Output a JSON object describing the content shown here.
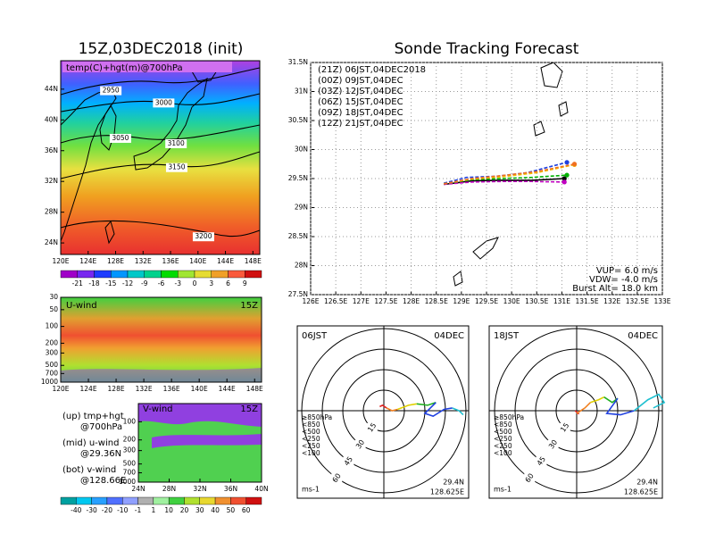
{
  "chart_data": [
    {
      "type": "map",
      "title": "15Z,03DEC2018 (init)",
      "label": "temp(C)+hgt(m)@700hPa",
      "xlim": [
        120,
        149
      ],
      "ylim": [
        22.5,
        47.7
      ],
      "xticks": [
        {
          "value": 120,
          "label": "120E"
        },
        {
          "value": 124,
          "label": "124E"
        },
        {
          "value": 128,
          "label": "128E"
        },
        {
          "value": 132,
          "label": "132E"
        },
        {
          "value": 136,
          "label": "136E"
        },
        {
          "value": 140,
          "label": "140E"
        },
        {
          "value": 144,
          "label": "144E"
        },
        {
          "value": 148,
          "label": "148E"
        }
      ],
      "yticks": [
        {
          "value": 24,
          "label": "24N"
        },
        {
          "value": 28,
          "label": "28N"
        },
        {
          "value": 32,
          "label": "32N"
        },
        {
          "value": 36,
          "label": "36N"
        },
        {
          "value": 40,
          "label": "40N"
        },
        {
          "value": 44,
          "label": "44N"
        }
      ],
      "contour_labels": [
        {
          "value": 2950,
          "lon": 127.3,
          "lat": 43.8
        },
        {
          "value": 3000,
          "lon": 135,
          "lat": 42.2
        },
        {
          "value": 3050,
          "lon": 128.7,
          "lat": 37.6
        },
        {
          "value": 3100,
          "lon": 136.8,
          "lat": 36.9
        },
        {
          "value": 3150,
          "lon": 136.9,
          "lat": 33.8
        },
        {
          "value": 3200,
          "lon": 140.8,
          "lat": 24.8
        }
      ],
      "colorbar": {
        "ticks": [
          -21,
          -18,
          -15,
          -12,
          -9,
          -6,
          -3,
          0,
          3,
          6,
          9
        ],
        "colors": [
          "#a000c8",
          "#7828f0",
          "#1e3cff",
          "#0096ff",
          "#00c8c8",
          "#00d28c",
          "#00dc00",
          "#a0e632",
          "#e6dc32",
          "#f0a028",
          "#fa5a3c",
          "#d01010"
        ]
      }
    },
    {
      "type": "cross-section",
      "title": "U-wind",
      "time": "15Z",
      "log_y": true,
      "xlim": [
        120,
        149
      ],
      "ylim": [
        1000,
        30
      ],
      "xticks": [
        {
          "value": 120,
          "label": "120E"
        },
        {
          "value": 124,
          "label": "124E"
        },
        {
          "value": 128,
          "label": "128E"
        },
        {
          "value": 132,
          "label": "132E"
        },
        {
          "value": 136,
          "label": "136E"
        },
        {
          "value": 140,
          "label": "140E"
        },
        {
          "value": 144,
          "label": "144E"
        },
        {
          "value": 148,
          "label": "148E"
        }
      ],
      "yticks": [
        30,
        50,
        100,
        200,
        300,
        500,
        700,
        1000
      ]
    },
    {
      "type": "cross-section",
      "title": "V-wind",
      "time": "15Z",
      "log_y": true,
      "xlim": [
        24,
        40
      ],
      "ylim": [
        1000,
        50
      ],
      "xticks": [
        {
          "value": 24,
          "label": "24N"
        },
        {
          "value": 28,
          "label": "28N"
        },
        {
          "value": 32,
          "label": "32N"
        },
        {
          "value": 36,
          "label": "36N"
        },
        {
          "value": 40,
          "label": "40N"
        }
      ],
      "yticks": [
        100,
        200,
        300,
        500,
        700,
        1000
      ]
    },
    {
      "type": "line",
      "title": "Sonde Tracking Forecast",
      "grid": true,
      "xlim": [
        126,
        133
      ],
      "ylim": [
        27.5,
        31.5
      ],
      "xticks": [
        {
          "value": 126,
          "label": "126E"
        },
        {
          "value": 126.5,
          "label": "126.5E"
        },
        {
          "value": 127,
          "label": "127E"
        },
        {
          "value": 127.5,
          "label": "127.5E"
        },
        {
          "value": 128,
          "label": "128E"
        },
        {
          "value": 128.5,
          "label": "128.5E"
        },
        {
          "value": 129,
          "label": "129E"
        },
        {
          "value": 129.5,
          "label": "129.5E"
        },
        {
          "value": 130,
          "label": "130E"
        },
        {
          "value": 130.5,
          "label": "130.5E"
        },
        {
          "value": 131,
          "label": "131E"
        },
        {
          "value": 131.5,
          "label": "131.5E"
        },
        {
          "value": 132,
          "label": "132E"
        },
        {
          "value": 132.5,
          "label": "132.5E"
        },
        {
          "value": 133,
          "label": "133E"
        }
      ],
      "yticks": [
        {
          "value": 27.5,
          "label": "27.5N"
        },
        {
          "value": 28,
          "label": "28N"
        },
        {
          "value": 28.5,
          "label": "28.5N"
        },
        {
          "value": 29,
          "label": "29N"
        },
        {
          "value": 29.5,
          "label": "29.5N"
        },
        {
          "value": 30,
          "label": "30N"
        },
        {
          "value": 30.5,
          "label": "30.5N"
        },
        {
          "value": 31,
          "label": "31N"
        },
        {
          "value": 31.5,
          "label": "31.5N"
        }
      ],
      "series": [
        {
          "name": "(21Z) 06JST,04DEC2018",
          "color": "#000000",
          "x": [
            128.65,
            129.2,
            129.8,
            130.4,
            131.05
          ],
          "y": [
            29.4,
            29.46,
            29.47,
            29.47,
            29.5
          ]
        },
        {
          "name": "(00Z) 09JST,04DEC",
          "color": "#c000c0",
          "x": [
            128.65,
            129.2,
            129.8,
            130.4,
            131.05
          ],
          "y": [
            29.4,
            29.44,
            29.45,
            29.45,
            29.44
          ]
        },
        {
          "name": "(03Z) 12JST,04DEC",
          "color": "#2040e0",
          "x": [
            128.65,
            129.1,
            129.7,
            130.3,
            131.1
          ],
          "y": [
            29.42,
            29.52,
            29.54,
            29.6,
            29.78
          ]
        },
        {
          "name": "(06Z) 15JST,04DEC",
          "color": "#00b000",
          "x": [
            128.65,
            129.2,
            129.8,
            130.4,
            131.1
          ],
          "y": [
            29.41,
            29.48,
            29.5,
            29.52,
            29.56
          ]
        },
        {
          "name": "(09Z) 18JST,04DEC",
          "color": "#f0c000",
          "x": [
            128.65,
            129.2,
            129.8,
            130.5,
            131.25
          ],
          "y": [
            29.41,
            29.49,
            29.53,
            29.6,
            29.74
          ]
        },
        {
          "name": "(12Z) 21JST,04DEC",
          "color": "#f07020",
          "x": [
            128.65,
            129.2,
            129.8,
            130.5,
            131.25
          ],
          "y": [
            29.41,
            29.5,
            29.55,
            29.62,
            29.75
          ]
        }
      ],
      "notes": [
        "VUP= 6.0 m/s",
        "VDW= -4.0 m/s",
        "Burst Alt= 18.0 km"
      ]
    },
    {
      "type": "hodograph",
      "title": "06JST",
      "date": "04DEC",
      "rlim": [
        0,
        60
      ],
      "rings": [
        15,
        30,
        45,
        60
      ],
      "unit": "ms-1",
      "lat": "29.4N",
      "lon": "128.625E",
      "series": [
        {
          "name": "≥850hPa",
          "color": "#e02020",
          "u": [
            -3,
            -1,
            2
          ],
          "v": [
            3,
            4,
            2
          ]
        },
        {
          "name": "<850",
          "color": "#f08020",
          "u": [
            2,
            6,
            10
          ],
          "v": [
            2,
            0,
            1
          ]
        },
        {
          "name": "<500",
          "color": "#e0d000",
          "u": [
            10,
            18,
            24
          ],
          "v": [
            1,
            4,
            5
          ]
        },
        {
          "name": "<250",
          "color": "#20b020",
          "u": [
            24,
            32,
            38
          ],
          "v": [
            5,
            4,
            6
          ]
        },
        {
          "name": "<250",
          "color": "#2040e0",
          "u": [
            38,
            30,
            36,
            44,
            50
          ],
          "v": [
            6,
            -2,
            -4,
            1,
            2
          ]
        },
        {
          "name": "<100",
          "color": "#20c0d0",
          "u": [
            50,
            55,
            58
          ],
          "v": [
            2,
            0,
            -3
          ]
        }
      ]
    },
    {
      "type": "hodograph",
      "title": "18JST",
      "date": "04DEC",
      "rlim": [
        0,
        60
      ],
      "rings": [
        15,
        30,
        45,
        60
      ],
      "unit": "ms-1",
      "lat": "29.4N",
      "lon": "128.625E",
      "series": [
        {
          "name": "≥850hPa",
          "color": "#e02020",
          "u": [
            -1,
            1,
            0
          ],
          "v": [
            0,
            -2,
            -2
          ]
        },
        {
          "name": "<850",
          "color": "#f08020",
          "u": [
            0,
            6,
            10
          ],
          "v": [
            -2,
            2,
            6
          ]
        },
        {
          "name": "<500",
          "color": "#e0d000",
          "u": [
            10,
            16,
            20
          ],
          "v": [
            6,
            8,
            10
          ]
        },
        {
          "name": "<250",
          "color": "#20b020",
          "u": [
            20,
            26,
            30
          ],
          "v": [
            10,
            6,
            9
          ]
        },
        {
          "name": "<250",
          "color": "#2040e0",
          "u": [
            30,
            22,
            32,
            42
          ],
          "v": [
            9,
            -2,
            -3,
            0
          ]
        },
        {
          "name": "<100",
          "color": "#20c0d0",
          "u": [
            42,
            52,
            60,
            64,
            56
          ],
          "v": [
            0,
            8,
            12,
            6,
            2
          ]
        }
      ]
    }
  ],
  "notes": [
    "(up) tmp+hgt",
    "@700hPa",
    "(mid) u-wind",
    "@29.36N",
    "(bot) v-wind",
    "@128.66E"
  ],
  "wind_colorbar": {
    "ticks": [
      -40,
      -30,
      -20,
      -10,
      -1,
      1,
      10,
      20,
      30,
      40,
      50,
      60
    ],
    "colors": [
      "#00a0a0",
      "#00c8f0",
      "#28a0ff",
      "#5070ff",
      "#90a0ff",
      "#b0b0b0",
      "#a0f0a0",
      "#40d040",
      "#b0e030",
      "#e8d830",
      "#f09030",
      "#f05030",
      "#d01010"
    ]
  }
}
